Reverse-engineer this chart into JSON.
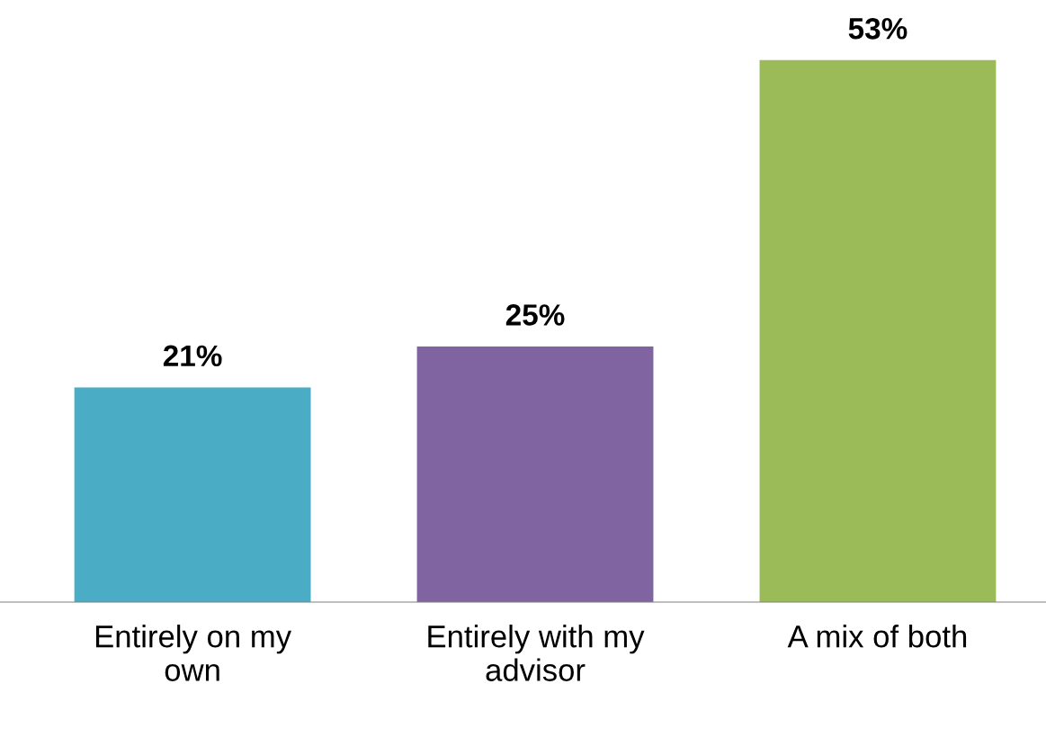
{
  "chart_data": {
    "type": "bar",
    "categories": [
      "Entirely on my own",
      "Entirely with my advisor",
      "A mix of both"
    ],
    "values": [
      21,
      25,
      53
    ],
    "colors": [
      "#4bacc6",
      "#8064a2",
      "#9bbb59"
    ],
    "value_labels": [
      "21%",
      "25%",
      "53%"
    ],
    "grid": false,
    "legend": false
  }
}
